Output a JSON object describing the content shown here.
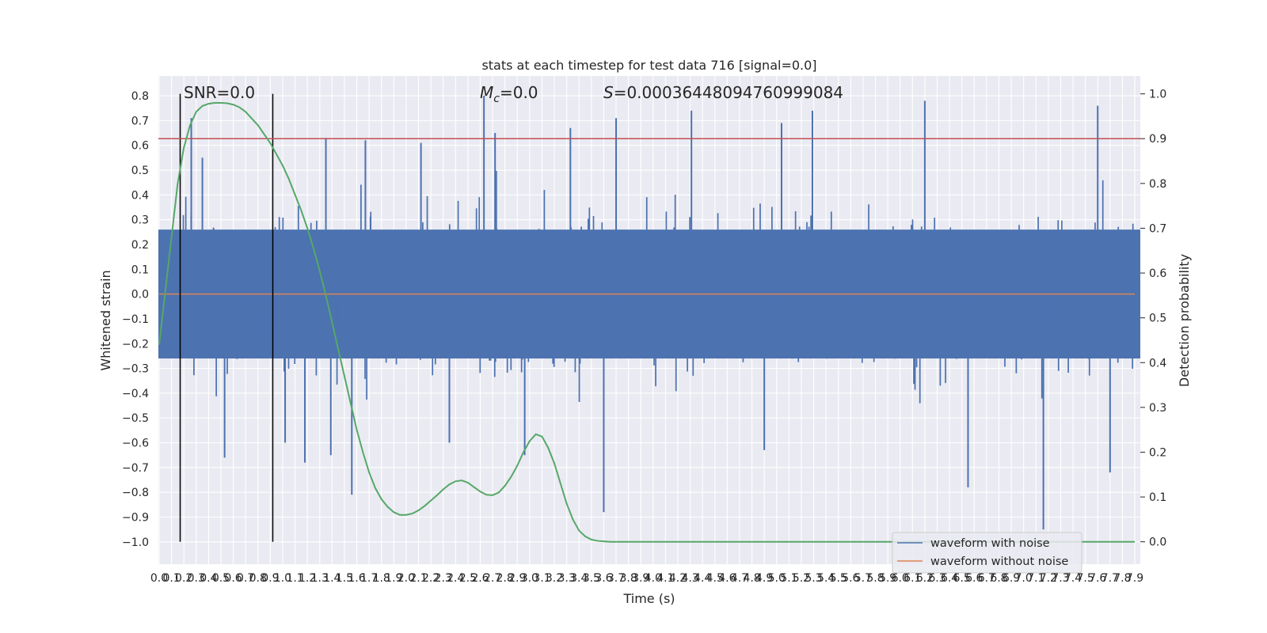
{
  "chart_data": {
    "type": "line",
    "title": "stats at each timestep for test data 716 [signal=0.0]",
    "xlabel": "Time (s)",
    "ylabel": "Whitened strain",
    "y2label": "Detection probability",
    "xlim": [
      0.0,
      7.9
    ],
    "ylim": [
      -1.09,
      0.88
    ],
    "y2lim": [
      -0.05,
      1.04
    ],
    "grid": true,
    "legend_position": "lower-right",
    "x_tick_labels": [
      "0.0",
      "0.1",
      "0.2",
      "0.3",
      "0.4",
      "0.5",
      "0.6",
      "0.7",
      "0.8",
      "0.9",
      "1.0",
      "1.1",
      "1.2",
      "1.3",
      "1.4",
      "1.5",
      "1.6",
      "1.7",
      "1.8",
      "1.9",
      "2.0",
      "2.1",
      "2.2",
      "2.3",
      "2.4",
      "2.5",
      "2.6",
      "2.7",
      "2.8",
      "2.9",
      "3.0",
      "3.1",
      "3.2",
      "3.3",
      "3.4",
      "3.5",
      "3.6",
      "3.7",
      "3.8",
      "3.9",
      "4.0",
      "4.1",
      "4.2",
      "4.3",
      "4.4",
      "4.5",
      "4.6",
      "4.7",
      "4.8",
      "4.9",
      "5.0",
      "5.1",
      "5.2",
      "5.3",
      "5.4",
      "5.5",
      "5.6",
      "5.7",
      "5.8",
      "5.9",
      "6.0",
      "6.1",
      "6.2",
      "6.3",
      "6.4",
      "6.5",
      "6.6",
      "6.7",
      "6.8",
      "6.9",
      "7.0",
      "7.1",
      "7.2",
      "7.3",
      "7.4",
      "7.5",
      "7.6",
      "7.7",
      "7.8",
      "7.9"
    ],
    "y_tick_labels": [
      "0.8",
      "0.7",
      "0.6",
      "0.5",
      "0.4",
      "0.3",
      "0.2",
      "0.1",
      "0.0",
      "−0.1",
      "−0.2",
      "−0.3",
      "−0.4",
      "−0.5",
      "−0.6",
      "−0.7",
      "−0.8",
      "−0.9",
      "−1.0"
    ],
    "y_tick_values": [
      0.8,
      0.7,
      0.6,
      0.5,
      0.4,
      0.3,
      0.2,
      0.1,
      0.0,
      -0.1,
      -0.2,
      -0.3,
      -0.4,
      -0.5,
      -0.6,
      -0.7,
      -0.8,
      -0.9,
      -1.0
    ],
    "y2_tick_labels": [
      "1.0",
      "0.9",
      "0.8",
      "0.7",
      "0.6",
      "0.5",
      "0.4",
      "0.3",
      "0.2",
      "0.1",
      "0.0"
    ],
    "y2_tick_values": [
      1.0,
      0.9,
      0.8,
      0.7,
      0.6,
      0.5,
      0.4,
      0.3,
      0.2,
      0.1,
      0.0
    ],
    "annotations": {
      "snr": "SNR=0.0",
      "mc": "=0.0",
      "mc_symbol": "M",
      "mc_sub": "c",
      "s": "=0.00036448094760999084",
      "s_symbol": "S"
    },
    "vertical_lines_x": [
      0.17,
      0.92
    ],
    "threshold_y2": 0.9,
    "series": [
      {
        "name": "waveform with noise",
        "color": "#4c72b0",
        "noise_envelope": {
          "core_abs": 0.26,
          "typical_peak": 0.45,
          "max": 0.8,
          "min": -0.96
        },
        "spikes": [
          {
            "x": 0.26,
            "y": 0.71
          },
          {
            "x": 0.35,
            "y": 0.55
          },
          {
            "x": 0.53,
            "y": -0.66
          },
          {
            "x": 1.02,
            "y": -0.6
          },
          {
            "x": 1.18,
            "y": -0.68
          },
          {
            "x": 1.35,
            "y": 0.63
          },
          {
            "x": 1.39,
            "y": -0.65
          },
          {
            "x": 1.56,
            "y": -0.81
          },
          {
            "x": 1.67,
            "y": 0.62
          },
          {
            "x": 2.12,
            "y": 0.61
          },
          {
            "x": 2.35,
            "y": -0.6
          },
          {
            "x": 2.63,
            "y": 0.8
          },
          {
            "x": 2.72,
            "y": 0.65
          },
          {
            "x": 2.96,
            "y": -0.65
          },
          {
            "x": 3.33,
            "y": 0.67
          },
          {
            "x": 3.6,
            "y": -0.88
          },
          {
            "x": 3.7,
            "y": 0.71
          },
          {
            "x": 4.31,
            "y": 0.74
          },
          {
            "x": 4.9,
            "y": -0.63
          },
          {
            "x": 5.04,
            "y": 0.69
          },
          {
            "x": 5.29,
            "y": 0.74
          },
          {
            "x": 6.2,
            "y": 0.78
          },
          {
            "x": 6.55,
            "y": -0.78
          },
          {
            "x": 7.16,
            "y": -0.95
          },
          {
            "x": 7.6,
            "y": 0.76
          },
          {
            "x": 7.7,
            "y": -0.72
          }
        ]
      },
      {
        "name": "waveform without noise",
        "color": "#dd8452",
        "x": [
          0.0,
          7.9
        ],
        "values": [
          0.0,
          0.0
        ]
      },
      {
        "name": "Detection probability",
        "axis": "right",
        "color": "#55a868",
        "x": [
          0.0,
          0.05,
          0.1,
          0.15,
          0.2,
          0.25,
          0.3,
          0.35,
          0.4,
          0.45,
          0.5,
          0.55,
          0.6,
          0.65,
          0.7,
          0.75,
          0.8,
          0.85,
          0.9,
          0.95,
          1.0,
          1.05,
          1.1,
          1.15,
          1.2,
          1.25,
          1.3,
          1.35,
          1.4,
          1.45,
          1.5,
          1.55,
          1.6,
          1.65,
          1.7,
          1.75,
          1.8,
          1.85,
          1.9,
          1.95,
          2.0,
          2.05,
          2.1,
          2.15,
          2.2,
          2.25,
          2.3,
          2.35,
          2.4,
          2.45,
          2.5,
          2.55,
          2.6,
          2.65,
          2.7,
          2.75,
          2.8,
          2.85,
          2.9,
          2.95,
          3.0,
          3.05,
          3.1,
          3.15,
          3.2,
          3.25,
          3.3,
          3.35,
          3.4,
          3.45,
          3.5,
          3.55,
          3.6,
          3.65,
          3.7,
          3.75,
          3.8,
          3.85,
          3.9,
          3.95,
          4.0,
          4.05,
          4.1,
          4.15,
          4.2,
          4.3,
          4.5,
          5.0,
          6.0,
          7.0,
          7.9
        ],
        "values": [
          0.44,
          0.56,
          0.68,
          0.8,
          0.88,
          0.93,
          0.96,
          0.973,
          0.978,
          0.98,
          0.98,
          0.979,
          0.976,
          0.97,
          0.96,
          0.945,
          0.93,
          0.91,
          0.89,
          0.865,
          0.84,
          0.81,
          0.775,
          0.74,
          0.7,
          0.655,
          0.605,
          0.55,
          0.49,
          0.43,
          0.37,
          0.31,
          0.25,
          0.2,
          0.155,
          0.12,
          0.095,
          0.078,
          0.066,
          0.06,
          0.06,
          0.063,
          0.07,
          0.08,
          0.092,
          0.104,
          0.117,
          0.128,
          0.135,
          0.137,
          0.132,
          0.122,
          0.112,
          0.105,
          0.104,
          0.11,
          0.125,
          0.145,
          0.17,
          0.2,
          0.225,
          0.24,
          0.235,
          0.21,
          0.175,
          0.13,
          0.085,
          0.05,
          0.025,
          0.012,
          0.005,
          0.002,
          0.001,
          0.0,
          0.0,
          0.0,
          0.0,
          0.0,
          0.0,
          0.0,
          0.0,
          0.0,
          0.0,
          0.0,
          0.0,
          0.0,
          0.0,
          0.0,
          0.0,
          0.0,
          0.0
        ]
      },
      {
        "name": "Threshold",
        "axis": "right",
        "color": "#c44e52",
        "values": [
          0.9
        ]
      }
    ],
    "legend": [
      {
        "label": "waveform with noise",
        "color": "#4c72b0"
      },
      {
        "label": "waveform without noise",
        "color": "#dd8452"
      }
    ]
  }
}
